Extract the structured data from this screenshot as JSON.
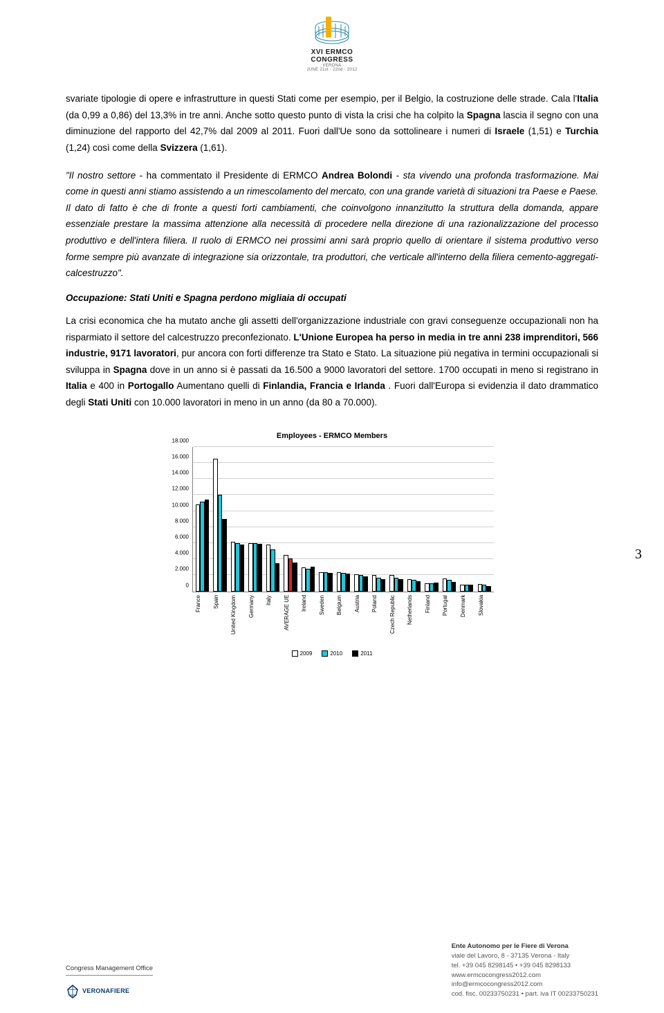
{
  "header": {
    "logo_line1": "XVI ERMCO",
    "logo_line2": "CONGRESS",
    "logo_sub1": "VERONA",
    "logo_sub2": "JUNE 21st - 22nd · 2012"
  },
  "paragraphs": {
    "p1_a": "svariate tipologie di opere e infrastrutture in questi Stati come per esempio, per il Belgio, la costruzione delle strade. Cala l'",
    "p1_b": "Italia",
    "p1_c": " (da 0,99 a 0,86) del 13,3% in tre anni. Anche sotto questo punto di vista la crisi che ha colpito la ",
    "p1_d": "Spagna",
    "p1_e": " lascia il segno con una diminuzione del rapporto del 42,7% dal 2009 al 2011. Fuori dall'Ue sono da sottolineare i numeri di ",
    "p1_f": "Israele",
    "p1_g": " (1,51) e ",
    "p1_h": "Turchia",
    "p1_i": " (1,24) così come della ",
    "p1_j": "Svizzera",
    "p1_k": " (1,61).",
    "p2_a": "\"Il nostro settore ",
    "p2_b": "- ha commentato il Presidente di ERMCO ",
    "p2_c": "Andrea Bolondi",
    "p2_d": " - ",
    "p2_e": "sta vivendo una profonda trasformazione. Mai come in questi anni stiamo assistendo a un rimescolamento del mercato, con una grande varietà di situazioni tra Paese e Paese. Il dato di fatto è che di fronte a questi forti cambiamenti, che coinvolgono innanzitutto la struttura della domanda, appare essenziale prestare la massima attenzione alla necessità di procedere nella direzione di una razionalizzazione del processo produttivo e dell'intera filiera. Il ruolo di ERMCO nei prossimi anni sarà proprio quello di orientare il sistema produttivo verso forme sempre più avanzate di integrazione sia orizzontale, tra produttori, che verticale all'interno della filiera cemento-aggregati-calcestruzzo\".",
    "h1": "Occupazione: Stati Uniti e Spagna perdono migliaia di occupati",
    "p3_a": "La crisi economica che ha mutato anche gli assetti dell'organizzazione industriale con gravi conseguenze occupazionali non ha risparmiato il settore del calcestruzzo preconfezionato. ",
    "p3_b": "L'Unione Europea ha perso in media in tre anni  238 imprenditori, 566 industrie, 9171 lavoratori",
    "p3_c": ", pur ancora con forti differenze tra Stato e Stato. La situazione più negativa in termini occupazionali si sviluppa in ",
    "p3_d": "Spagna",
    "p3_e": " dove in un anno si è passati da 16.500 a 9000 lavoratori del settore. 1700 occupati in meno si registrano in ",
    "p3_f": "Italia",
    "p3_g": " e 400 in ",
    "p3_h": "Portogallo",
    "p3_i": " Aumentano quelli di ",
    "p3_j": "Finlandia, Francia e Irlanda",
    "p3_k": " . Fuori dall'Europa si evidenzia il dato drammatico degli ",
    "p3_l": "Stati Uniti",
    "p3_m": " con 10.000 lavoratori in meno in un anno (da 80 a 70.000)."
  },
  "page_number": "3",
  "chart": {
    "title": "Employees - ERMCO Members",
    "ylim": [
      0,
      18000
    ],
    "ytick_step": 2000,
    "yticks": [
      "0",
      "2.000",
      "4.000",
      "6.000",
      "8.000",
      "10.000",
      "12.000",
      "14.000",
      "16.000",
      "18.000"
    ],
    "categories": [
      "France",
      "Spain",
      "United Kingdom",
      "Germany",
      "Italy",
      "AVERAGE UE",
      "Ireland",
      "Sweden",
      "Belgium",
      "Austria",
      "Poland",
      "Czech Republic",
      "Netherlands",
      "Finland",
      "Portugal",
      "Denmark",
      "Slovakia"
    ],
    "series": [
      {
        "name": "2009",
        "color": "#ffffff",
        "values": [
          10800,
          16500,
          6200,
          6000,
          5800,
          4500,
          3000,
          2400,
          2350,
          2100,
          2000,
          2000,
          1500,
          1000,
          1600,
          800,
          900
        ]
      },
      {
        "name": "2010",
        "color": "#1fc6d9",
        "values": [
          11200,
          12000,
          6000,
          6000,
          5200,
          4100,
          2800,
          2400,
          2300,
          2000,
          1700,
          1700,
          1400,
          1000,
          1400,
          800,
          800
        ]
      },
      {
        "name": "2011",
        "color": "#000000",
        "values": [
          11400,
          9000,
          5800,
          5900,
          3500,
          3600,
          3100,
          2300,
          2200,
          1900,
          1500,
          1500,
          1300,
          1100,
          1200,
          800,
          700
        ]
      }
    ],
    "highlight_index": 5,
    "highlight_color": "#e02020",
    "grid_color": "#d0d0d0",
    "border_color": "#808080",
    "label_fontsize": 8,
    "title_fontsize": 11
  },
  "footer": {
    "left_title": "Congress Management Office",
    "vf_text": "VERONAFIERE",
    "right_name": "Ente Autonomo per le Fiere di Verona",
    "right_addr": "viale del Lavoro, 8 - 37135 Verona - Italy",
    "right_tel": "tel. +39 045 8298145 • +39 045 8298133",
    "right_web": "www.ermcocongress2012.com",
    "right_email": "info@ermcocongress2012.com",
    "right_fisc": "cod. fisc. 00233750231 • part. iva IT 00233750231"
  }
}
